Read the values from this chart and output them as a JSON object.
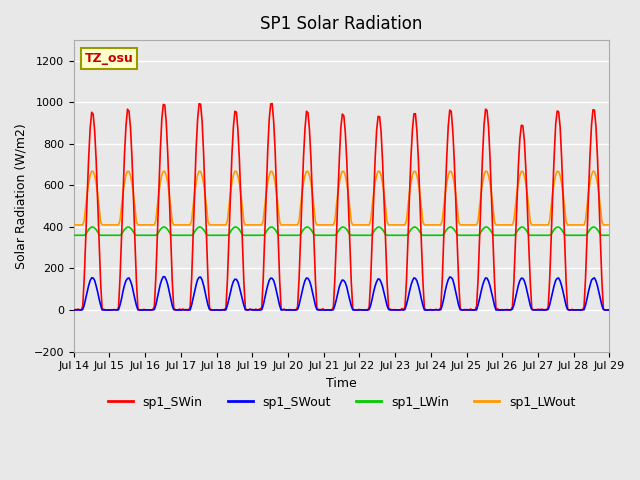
{
  "title": "SP1 Solar Radiation",
  "ylabel": "Solar Radiation (W/m2)",
  "xlabel": "Time",
  "annotation": "TZ_osu",
  "ylim": [
    -200,
    1300
  ],
  "yticks": [
    -200,
    0,
    200,
    400,
    600,
    800,
    1000,
    1200
  ],
  "background_color": "#e8e8e8",
  "grid_color": "white",
  "colors": {
    "SWin": "#ff0000",
    "SWout": "#0000ff",
    "LWin": "#00cc00",
    "LWout": "#ff9900"
  },
  "legend_labels": [
    "sp1_SWin",
    "sp1_SWout",
    "sp1_LWin",
    "sp1_LWout"
  ],
  "x_tick_labels": [
    "Jul 14",
    "Jul 15",
    "Jul 16",
    "Jul 17",
    "Jul 18",
    "Jul 19",
    "Jul 20",
    "Jul 21",
    "Jul 22",
    "Jul 23",
    "Jul 24",
    "Jul 25",
    "Jul 26",
    "Jul 27",
    "Jul 28",
    "Jul 29"
  ],
  "n_days": 15,
  "SWin_peaks": [
    960,
    975,
    1000,
    1005,
    965,
    1005,
    960,
    950,
    945,
    955,
    965,
    975,
    900,
    970,
    975
  ],
  "SWout_peaks": [
    155,
    155,
    160,
    160,
    150,
    155,
    155,
    145,
    150,
    155,
    160,
    155,
    155,
    155,
    155
  ],
  "LWin_base": 360,
  "LWin_amplitude": 40,
  "LWout_base": 410,
  "LWout_amplitude": 260
}
